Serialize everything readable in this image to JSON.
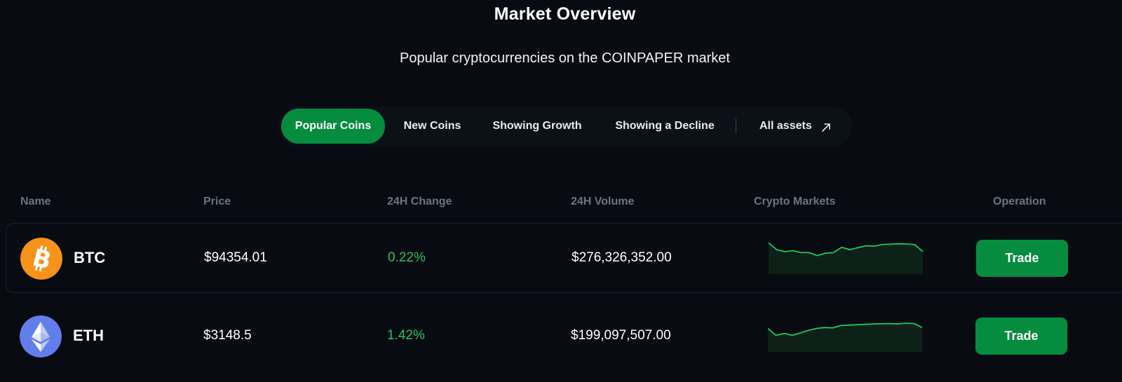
{
  "header": {
    "title": "Market Overview",
    "subtitle": "Popular cryptocurrencies on the COINPAPER market"
  },
  "tabs": [
    {
      "label": "Popular Coins",
      "active": true
    },
    {
      "label": "New Coins",
      "active": false
    },
    {
      "label": "Showing Growth",
      "active": false
    },
    {
      "label": "Showing a Decline",
      "active": false
    },
    {
      "label": "All assets",
      "active": false,
      "icon": "arrow-up-right-icon"
    }
  ],
  "table": {
    "columns": [
      "Name",
      "Price",
      "24H Change",
      "24H Volume",
      "Crypto Markets",
      "Operation"
    ],
    "rows": [
      {
        "icon": "bitcoin-icon",
        "symbol": "BTC",
        "price": "$94354.01",
        "change": "0.22%",
        "volume": "$276,326,352.00",
        "action": "Trade",
        "sparkline": [
          0.95,
          0.6,
          0.5,
          0.55,
          0.45,
          0.45,
          0.3,
          0.42,
          0.45,
          0.72,
          0.6,
          0.7,
          0.8,
          0.78,
          0.86,
          0.88,
          0.9,
          0.89,
          0.86,
          0.5
        ]
      },
      {
        "icon": "ethereum-icon",
        "symbol": "ETH",
        "price": "$3148.5",
        "change": "1.42%",
        "volume": "$199,097,507.00",
        "action": "Trade",
        "sparkline": [
          0.55,
          0.2,
          0.3,
          0.2,
          0.32,
          0.45,
          0.55,
          0.6,
          0.58,
          0.7,
          0.72,
          0.74,
          0.76,
          0.78,
          0.79,
          0.8,
          0.78,
          0.82,
          0.8,
          0.6
        ]
      }
    ]
  },
  "colors": {
    "background": "#080b12",
    "accent_green": "#068c3e",
    "positive_text": "#22c55e",
    "bitcoin": "#f7931a",
    "ethereum": "#627eea"
  }
}
